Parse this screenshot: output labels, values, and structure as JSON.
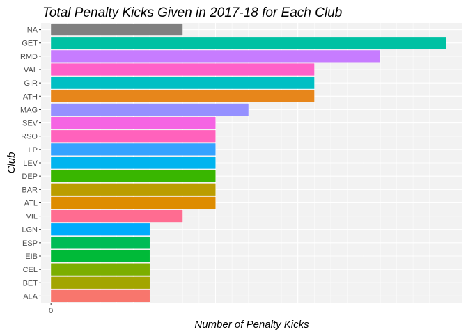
{
  "chart_data": {
    "type": "bar",
    "orientation": "horizontal",
    "title": "Total Penalty Kicks Given in 2017-18 for Each Club",
    "xlabel": "Number of Penalty Kicks",
    "ylabel": "Club",
    "x_tick_labels": [
      "0"
    ],
    "xlim": [
      -0.3,
      12.5
    ],
    "grid": true,
    "legend": "none",
    "categories": [
      "NA",
      "GET",
      "RMD",
      "VAL",
      "GIR",
      "ATH",
      "MAG",
      "SEV",
      "RSO",
      "LP",
      "LEV",
      "DEP",
      "BAR",
      "ATL",
      "VIL",
      "LGN",
      "ESP",
      "EIB",
      "CEL",
      "BET",
      "ALA"
    ],
    "values": [
      4,
      12,
      10,
      8,
      8,
      8,
      6,
      5,
      5,
      5,
      5,
      5,
      5,
      5,
      4,
      3,
      3,
      3,
      3,
      3,
      3
    ],
    "colors": [
      "#808080",
      "#00C1A3",
      "#C77CFF",
      "#FF61C9",
      "#00BFC4",
      "#E7861B",
      "#9590FF",
      "#F564E3",
      "#FF62BC",
      "#35A2FF",
      "#00B4EF",
      "#39B600",
      "#BB9D00",
      "#DE8C00",
      "#FF6C91",
      "#00ABFD",
      "#00BC56",
      "#00BA38",
      "#7CAE00",
      "#A3A500",
      "#F8766D"
    ]
  }
}
